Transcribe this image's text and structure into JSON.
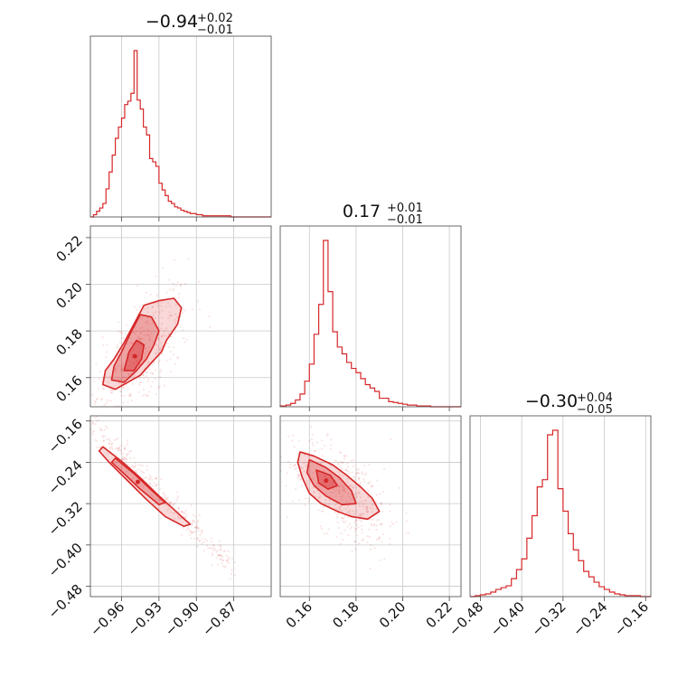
{
  "chart_data": {
    "type": "corner",
    "accent_color": "#d62728",
    "parameters": [
      {
        "id": "p1",
        "title_main": "−0.94",
        "title_plus": "+0.02",
        "title_minus": "−0.01",
        "range": [
          -0.985,
          -0.84
        ],
        "ticks": [
          -0.96,
          -0.93,
          -0.9,
          -0.87
        ],
        "tick_labels": [
          "−0.96",
          "−0.93",
          "−0.90",
          "−0.87"
        ],
        "hist": {
          "bins": [
            -0.985,
            -0.9825,
            -0.98,
            -0.9775,
            -0.975,
            -0.9725,
            -0.97,
            -0.9675,
            -0.965,
            -0.9625,
            -0.96,
            -0.9575,
            -0.955,
            -0.9525,
            -0.95,
            -0.9475,
            -0.945,
            -0.9425,
            -0.94,
            -0.9375,
            -0.935,
            -0.9325,
            -0.93,
            -0.9275,
            -0.925,
            -0.9225,
            -0.92,
            -0.9175,
            -0.915,
            -0.9125,
            -0.91,
            -0.9075,
            -0.905,
            -0.9025,
            -0.9,
            -0.8975,
            -0.895,
            -0.8925,
            -0.89,
            -0.8875,
            -0.885,
            -0.8825,
            -0.88,
            -0.8775,
            -0.875,
            -0.8725,
            -0.87,
            -0.8675,
            -0.865,
            -0.84
          ],
          "counts": [
            0,
            2,
            5,
            8,
            12,
            25,
            40,
            55,
            70,
            80,
            88,
            100,
            103,
            110,
            148,
            104,
            96,
            80,
            73,
            52,
            49,
            45,
            30,
            24,
            19,
            14,
            12,
            9,
            8,
            6,
            5,
            4,
            3,
            3,
            2,
            2,
            1,
            1,
            1,
            1,
            1,
            1,
            1,
            1,
            1,
            0,
            0,
            0,
            0
          ]
        }
      },
      {
        "id": "p2",
        "title_main": "0.17",
        "title_plus": "+0.01",
        "title_minus": "−0.01",
        "range": [
          0.1475,
          0.225
        ],
        "ticks": [
          0.16,
          0.18,
          0.2,
          0.22
        ],
        "tick_labels": [
          "0.16",
          "0.18",
          "0.20",
          "0.22"
        ],
        "hist": {
          "bins": [
            0.1475,
            0.15,
            0.152,
            0.154,
            0.156,
            0.158,
            0.16,
            0.162,
            0.164,
            0.166,
            0.168,
            0.17,
            0.172,
            0.174,
            0.176,
            0.178,
            0.18,
            0.182,
            0.184,
            0.186,
            0.188,
            0.19,
            0.192,
            0.194,
            0.196,
            0.198,
            0.2,
            0.202,
            0.204,
            0.206,
            0.208,
            0.21,
            0.212,
            0.214,
            0.225
          ],
          "counts": [
            1,
            2,
            4,
            8,
            15,
            30,
            50,
            85,
            120,
            195,
            135,
            88,
            70,
            62,
            52,
            45,
            40,
            33,
            26,
            22,
            18,
            10,
            10,
            6,
            5,
            4,
            3,
            2,
            2,
            1,
            1,
            1,
            0,
            0
          ]
        }
      },
      {
        "id": "p3",
        "title_main": "−0.30",
        "title_plus": "+0.04",
        "title_minus": "−0.05",
        "range": [
          -0.5,
          -0.15
        ],
        "ticks": [
          -0.48,
          -0.4,
          -0.32,
          -0.24,
          -0.16
        ],
        "tick_labels": [
          "−0.48",
          "−0.40",
          "−0.32",
          "−0.24",
          "−0.16"
        ],
        "hist": {
          "bins": [
            -0.5,
            -0.49,
            -0.48,
            -0.47,
            -0.46,
            -0.45,
            -0.44,
            -0.43,
            -0.42,
            -0.41,
            -0.4,
            -0.39,
            -0.38,
            -0.37,
            -0.36,
            -0.35,
            -0.34,
            -0.33,
            -0.32,
            -0.31,
            -0.3,
            -0.29,
            -0.28,
            -0.27,
            -0.26,
            -0.25,
            -0.24,
            -0.23,
            -0.22,
            -0.21,
            -0.2,
            -0.19,
            -0.18,
            -0.17,
            -0.16,
            -0.15
          ],
          "counts": [
            0,
            1,
            2,
            3,
            5,
            8,
            10,
            12,
            20,
            30,
            42,
            65,
            90,
            122,
            130,
            180,
            185,
            120,
            95,
            70,
            52,
            40,
            28,
            22,
            16,
            11,
            8,
            5,
            3,
            2,
            1,
            1,
            1,
            0,
            0
          ]
        }
      }
    ],
    "scatter_panels": [
      {
        "id": "p2_vs_p1",
        "x": "p1",
        "y": "p2",
        "contour_levels": [
          [
            [
              -0.975,
              0.157
            ],
            [
              -0.965,
              0.155
            ],
            [
              -0.955,
              0.158
            ],
            [
              -0.945,
              0.161
            ],
            [
              -0.935,
              0.167
            ],
            [
              -0.928,
              0.171
            ],
            [
              -0.924,
              0.176
            ],
            [
              -0.92,
              0.179
            ],
            [
              -0.915,
              0.183
            ],
            [
              -0.912,
              0.19
            ],
            [
              -0.918,
              0.194
            ],
            [
              -0.93,
              0.193
            ],
            [
              -0.942,
              0.191
            ],
            [
              -0.95,
              0.183
            ],
            [
              -0.958,
              0.175
            ],
            [
              -0.966,
              0.168
            ],
            [
              -0.973,
              0.163
            ]
          ],
          [
            [
              -0.968,
              0.159
            ],
            [
              -0.958,
              0.158
            ],
            [
              -0.948,
              0.163
            ],
            [
              -0.94,
              0.168
            ],
            [
              -0.934,
              0.174
            ],
            [
              -0.93,
              0.18
            ],
            [
              -0.936,
              0.186
            ],
            [
              -0.945,
              0.187
            ],
            [
              -0.952,
              0.18
            ],
            [
              -0.96,
              0.171
            ],
            [
              -0.966,
              0.165
            ]
          ],
          [
            [
              -0.958,
              0.163
            ],
            [
              -0.95,
              0.163
            ],
            [
              -0.944,
              0.168
            ],
            [
              -0.942,
              0.174
            ],
            [
              -0.948,
              0.176
            ],
            [
              -0.954,
              0.171
            ]
          ]
        ],
        "point_cloud": {
          "center": [
            -0.945,
            0.17
          ],
          "spread": [
            0.02,
            0.012
          ],
          "count": 420
        }
      },
      {
        "id": "p3_vs_p1",
        "x": "p1",
        "y": "p3",
        "contour_levels": [
          [
            [
              -0.975,
              -0.21
            ],
            [
              -0.96,
              -0.238
            ],
            [
              -0.945,
              -0.27
            ],
            [
              -0.93,
              -0.305
            ],
            [
              -0.915,
              -0.338
            ],
            [
              -0.905,
              -0.36
            ],
            [
              -0.91,
              -0.364
            ],
            [
              -0.925,
              -0.345
            ],
            [
              -0.94,
              -0.312
            ],
            [
              -0.955,
              -0.276
            ],
            [
              -0.97,
              -0.24
            ],
            [
              -0.978,
              -0.218
            ]
          ],
          [
            [
              -0.965,
              -0.232
            ],
            [
              -0.95,
              -0.262
            ],
            [
              -0.935,
              -0.296
            ],
            [
              -0.925,
              -0.318
            ],
            [
              -0.93,
              -0.322
            ],
            [
              -0.945,
              -0.292
            ],
            [
              -0.958,
              -0.262
            ],
            [
              -0.968,
              -0.24
            ]
          ]
        ],
        "point_cloud": {
          "line": [
            [
              -0.985,
              -0.16
            ],
            [
              -0.87,
              -0.45
            ]
          ],
          "width": 0.012,
          "count": 320
        }
      },
      {
        "id": "p3_vs_p2",
        "x": "p2",
        "y": "p3",
        "contour_levels": [
          [
            [
              0.156,
              -0.22
            ],
            [
              0.162,
              -0.228
            ],
            [
              0.17,
              -0.245
            ],
            [
              0.176,
              -0.265
            ],
            [
              0.182,
              -0.288
            ],
            [
              0.187,
              -0.31
            ],
            [
              0.19,
              -0.335
            ],
            [
              0.185,
              -0.35
            ],
            [
              0.178,
              -0.345
            ],
            [
              0.172,
              -0.335
            ],
            [
              0.165,
              -0.32
            ],
            [
              0.16,
              -0.3
            ],
            [
              0.157,
              -0.27
            ],
            [
              0.155,
              -0.24
            ]
          ],
          [
            [
              0.16,
              -0.235
            ],
            [
              0.167,
              -0.25
            ],
            [
              0.173,
              -0.27
            ],
            [
              0.178,
              -0.295
            ],
            [
              0.18,
              -0.32
            ],
            [
              0.174,
              -0.322
            ],
            [
              0.167,
              -0.305
            ],
            [
              0.162,
              -0.285
            ],
            [
              0.159,
              -0.26
            ]
          ],
          [
            [
              0.163,
              -0.255
            ],
            [
              0.169,
              -0.265
            ],
            [
              0.172,
              -0.285
            ],
            [
              0.168,
              -0.292
            ],
            [
              0.164,
              -0.28
            ]
          ]
        ],
        "point_cloud": {
          "center": [
            0.175,
            -0.3
          ],
          "spread": [
            0.012,
            0.045
          ],
          "count": 420
        }
      }
    ]
  }
}
